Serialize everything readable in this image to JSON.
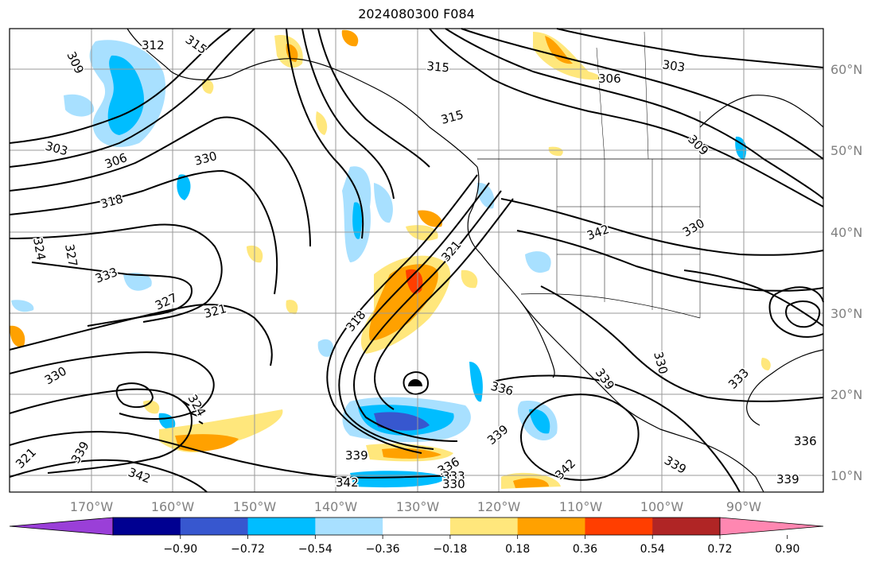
{
  "title": "2024080300 F084",
  "lat_labels": [
    "60°N",
    "50°N",
    "40°N",
    "30°N",
    "20°N",
    "10°N"
  ],
  "lon_labels": [
    "170°W",
    "160°W",
    "150°W",
    "140°W",
    "130°W",
    "120°W",
    "110°W",
    "100°W",
    "90°W"
  ],
  "contour_labels": [
    "312",
    "315",
    "309",
    "303",
    "306",
    "330",
    "318",
    "324",
    "327",
    "333",
    "321",
    "330",
    "315",
    "315",
    "303",
    "306",
    "309",
    "342",
    "330",
    "321",
    "318",
    "327",
    "336",
    "339",
    "339",
    "342",
    "336",
    "333",
    "330",
    "339",
    "342",
    "339",
    "336",
    "339",
    "333",
    "330",
    "324",
    "321",
    "339",
    "342"
  ],
  "colorbar": {
    "ticks": [
      "−0.90",
      "−0.72",
      "−0.54",
      "−0.36",
      "−0.18",
      "0.18",
      "0.36",
      "0.54",
      "0.72",
      "0.90"
    ],
    "colors": [
      "#9a3fd8",
      "#000091",
      "#3757cf",
      "#00bdff",
      "#a8e0ff",
      "#ffffff",
      "#ffe77c",
      "#ffa100",
      "#ff3e00",
      "#b02525",
      "#ff87b1"
    ]
  }
}
